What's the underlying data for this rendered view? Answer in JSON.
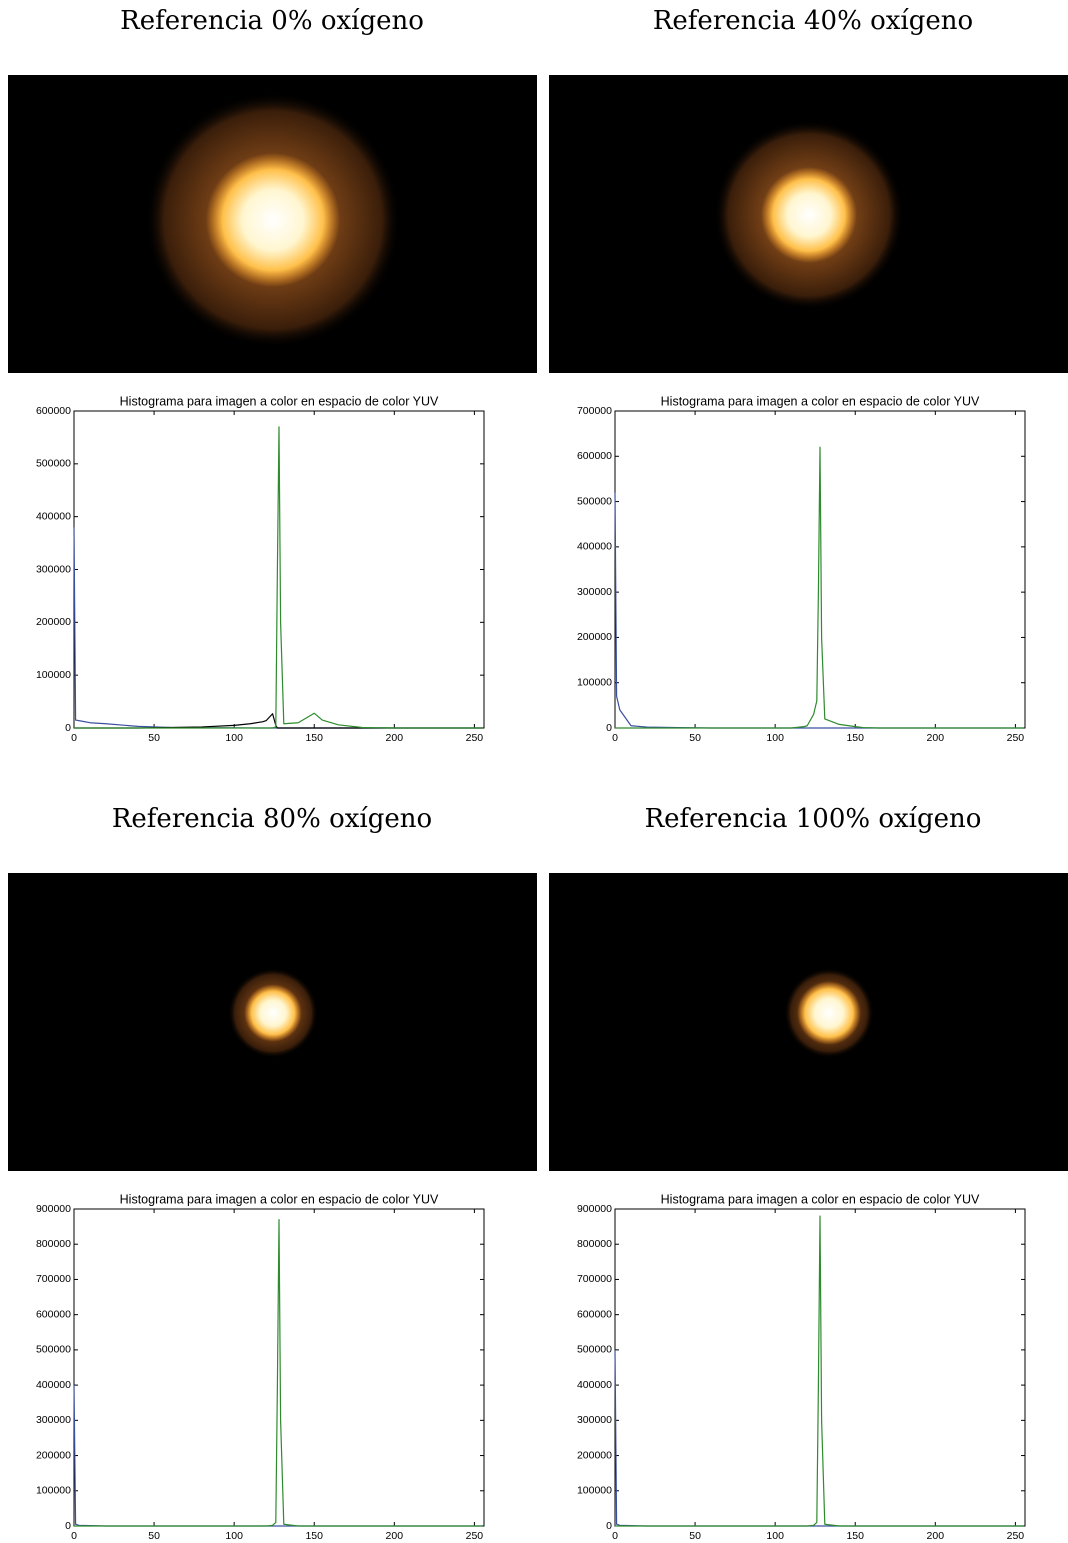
{
  "chart_data": [
    {
      "type": "line",
      "heading": "Referencia 0% oxígeno",
      "title": "Histograma para imagen a color en espacio de color YUV",
      "x": [
        0,
        1,
        3,
        10,
        20,
        40,
        60,
        80,
        100,
        110,
        118,
        120,
        124,
        126,
        127,
        128,
        129,
        131,
        140,
        150,
        155,
        165,
        180,
        200,
        255
      ],
      "series": [
        {
          "color": "#3b4fa0",
          "values": [
            380000,
            15000,
            14000,
            10000,
            8000,
            3000,
            1000,
            500,
            200,
            100,
            0,
            0,
            0,
            0,
            0,
            0,
            0,
            0,
            0,
            0,
            0,
            0,
            0,
            0,
            0
          ]
        },
        {
          "color": "#000000",
          "values": [
            0,
            0,
            0,
            0,
            0,
            0,
            1000,
            2000,
            5000,
            8000,
            12000,
            14000,
            27000,
            5000,
            0,
            0,
            0,
            0,
            0,
            0,
            0,
            0,
            0,
            0,
            0
          ]
        },
        {
          "color": "#2e8b2e",
          "values": [
            0,
            0,
            0,
            0,
            0,
            0,
            0,
            0,
            0,
            0,
            0,
            0,
            0,
            2000,
            300000,
            570000,
            200000,
            8000,
            10000,
            28000,
            15000,
            6000,
            1000,
            0,
            0
          ]
        }
      ],
      "xlim": [
        0,
        256
      ],
      "xticks": [
        0,
        50,
        100,
        150,
        200,
        250
      ],
      "ylim": [
        0,
        600000
      ],
      "yticks": [
        0,
        100000,
        200000,
        300000,
        400000,
        500000,
        600000
      ]
    },
    {
      "type": "line",
      "heading": "Referencia 40% oxígeno",
      "title": "Histograma para imagen a color en espacio de color YUV",
      "x": [
        0,
        1,
        3,
        10,
        20,
        40,
        60,
        80,
        100,
        110,
        118,
        120,
        124,
        126,
        127,
        128,
        129,
        131,
        140,
        150,
        155,
        165,
        180,
        200,
        255
      ],
      "series": [
        {
          "color": "#3b4fa0",
          "values": [
            520000,
            70000,
            40000,
            5000,
            2000,
            1000,
            0,
            0,
            0,
            0,
            0,
            0,
            0,
            0,
            0,
            0,
            0,
            0,
            0,
            0,
            0,
            0,
            0,
            0,
            0
          ]
        },
        {
          "color": "#2e8b2e",
          "values": [
            0,
            0,
            0,
            0,
            0,
            0,
            0,
            0,
            0,
            0,
            3000,
            5000,
            30000,
            60000,
            300000,
            620000,
            200000,
            20000,
            8000,
            3000,
            1000,
            0,
            0,
            0,
            0
          ]
        }
      ],
      "xlim": [
        0,
        256
      ],
      "xticks": [
        0,
        50,
        100,
        150,
        200,
        250
      ],
      "ylim": [
        0,
        700000
      ],
      "yticks": [
        0,
        100000,
        200000,
        300000,
        400000,
        500000,
        600000,
        700000
      ]
    },
    {
      "type": "line",
      "heading": "Referencia 80% oxígeno",
      "title": "Histograma para imagen a color en espacio de color YUV",
      "x": [
        0,
        1,
        3,
        10,
        20,
        40,
        60,
        80,
        100,
        110,
        118,
        120,
        124,
        126,
        127,
        128,
        129,
        131,
        140,
        150,
        155,
        165,
        180,
        200,
        255
      ],
      "series": [
        {
          "color": "#3b4fa0",
          "values": [
            400000,
            5000,
            2000,
            1000,
            0,
            0,
            0,
            0,
            0,
            0,
            0,
            0,
            0,
            0,
            0,
            0,
            0,
            0,
            0,
            0,
            0,
            0,
            0,
            0,
            0
          ]
        },
        {
          "color": "#2e8b2e",
          "values": [
            0,
            0,
            0,
            0,
            0,
            0,
            0,
            0,
            0,
            0,
            0,
            0,
            2000,
            10000,
            400000,
            870000,
            300000,
            5000,
            0,
            0,
            0,
            0,
            0,
            0,
            0
          ]
        }
      ],
      "xlim": [
        0,
        256
      ],
      "xticks": [
        0,
        50,
        100,
        150,
        200,
        250
      ],
      "ylim": [
        0,
        900000
      ],
      "yticks": [
        0,
        100000,
        200000,
        300000,
        400000,
        500000,
        600000,
        700000,
        800000,
        900000
      ]
    },
    {
      "type": "line",
      "heading": "Referencia 100% oxígeno",
      "title": "Histograma para imagen a color en espacio de color YUV",
      "x": [
        0,
        1,
        3,
        10,
        20,
        40,
        60,
        80,
        100,
        110,
        118,
        120,
        124,
        126,
        127,
        128,
        129,
        131,
        140,
        150,
        155,
        165,
        180,
        200,
        255
      ],
      "series": [
        {
          "color": "#3b4fa0",
          "values": [
            500000,
            5000,
            2000,
            1000,
            0,
            0,
            0,
            0,
            0,
            0,
            0,
            0,
            0,
            0,
            0,
            0,
            0,
            0,
            0,
            0,
            0,
            0,
            0,
            0,
            0
          ]
        },
        {
          "color": "#2e8b2e",
          "values": [
            0,
            0,
            0,
            0,
            0,
            0,
            0,
            0,
            0,
            0,
            0,
            0,
            2000,
            10000,
            400000,
            880000,
            300000,
            5000,
            0,
            0,
            0,
            0,
            0,
            0,
            0
          ]
        }
      ],
      "xlim": [
        0,
        256
      ],
      "xticks": [
        0,
        50,
        100,
        150,
        200,
        250
      ],
      "ylim": [
        0,
        900000
      ],
      "yticks": [
        0,
        100000,
        200000,
        300000,
        400000,
        500000,
        600000,
        700000,
        800000,
        900000
      ]
    }
  ]
}
